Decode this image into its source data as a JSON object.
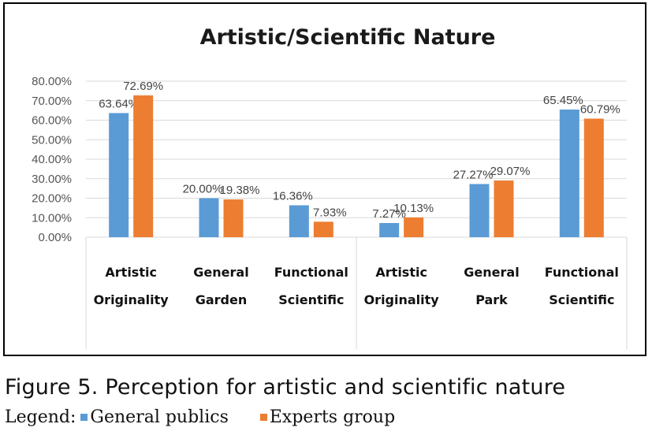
{
  "chart_data": {
    "type": "bar",
    "title": "Artistic/Scientific Nature",
    "categories": [
      [
        "Artistic",
        "Originality"
      ],
      [
        "General",
        "Garden"
      ],
      [
        "Functional",
        "Scientific"
      ],
      [
        "Artistic",
        "Originality"
      ],
      [
        "General",
        "Park"
      ],
      [
        "Functional",
        "Scientific"
      ]
    ],
    "series": [
      {
        "name": "General publics",
        "color": "#5b9bd5",
        "values": [
          63.64,
          20.0,
          16.36,
          7.27,
          27.27,
          65.45
        ],
        "labels": [
          "63.64%",
          "20.00%",
          "16.36%",
          "7.27%",
          "27.27%",
          "65.45%"
        ]
      },
      {
        "name": "Experts group",
        "color": "#ed7d31",
        "values": [
          72.69,
          19.38,
          7.93,
          10.13,
          29.07,
          60.79
        ],
        "labels": [
          "72.69%",
          "19.38%",
          "7.93%",
          "10.13%",
          "29.07%",
          "60.79%"
        ]
      }
    ],
    "y_ticks": [
      "0.00%",
      "10.00%",
      "20.00%",
      "30.00%",
      "40.00%",
      "50.00%",
      "60.00%",
      "70.00%",
      "80.00%"
    ],
    "ylim": [
      0,
      80
    ],
    "grid": true
  },
  "caption": "Figure 5. Perception for artistic and scientific nature",
  "legend": {
    "prefix": "Legend:",
    "items": [
      {
        "label": "General publics",
        "color": "#5b9bd5"
      },
      {
        "label": "Experts group",
        "color": "#ed7d31"
      }
    ]
  }
}
